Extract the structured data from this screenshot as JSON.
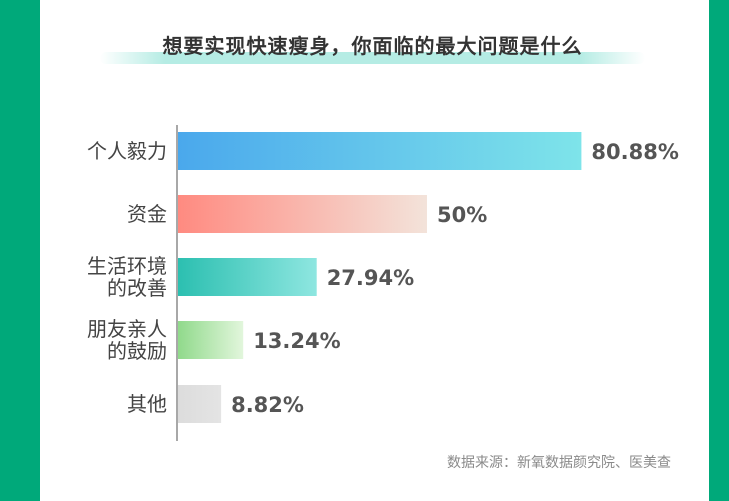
{
  "chart_data": {
    "type": "bar",
    "orientation": "horizontal",
    "title": "想要实现快速瘦身，你面临的最大问题是什么",
    "categories": [
      [
        "个人毅力"
      ],
      [
        "资金"
      ],
      [
        "生活环境",
        "的改善"
      ],
      [
        "朋友亲人",
        "的鼓励"
      ],
      [
        "其他"
      ]
    ],
    "values": [
      80.88,
      50,
      27.94,
      13.24,
      8.82
    ],
    "value_labels": [
      "80.88%",
      "50%",
      "27.94%",
      "13.24%",
      "8.82%"
    ],
    "xlim": [
      0,
      100
    ],
    "grid": false,
    "colors": [
      [
        "#4aa8ec",
        "#7ee4ea"
      ],
      [
        "#ff8a80",
        "#f3e3da"
      ],
      [
        "#2bbfb0",
        "#8ee6e0"
      ],
      [
        "#8fd98a",
        "#e2f6dc"
      ],
      [
        "#dcdcdc",
        "#e4e4e4"
      ]
    ]
  },
  "source": "数据来源：新氧数据颜究院、医美查"
}
